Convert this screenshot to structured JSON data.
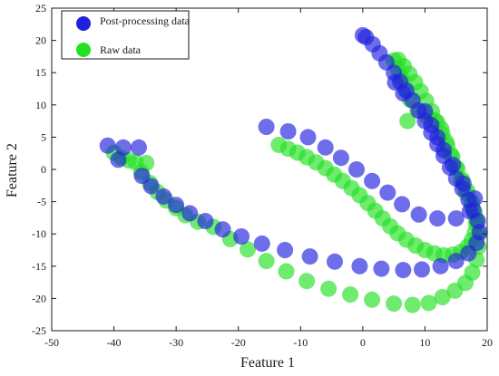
{
  "chart_data": {
    "type": "scatter",
    "xlabel": "Feature 1",
    "ylabel": "Feature 2",
    "xlim": [
      -50,
      20
    ],
    "ylim": [
      -25,
      25
    ],
    "xticks": [
      -50,
      -40,
      -30,
      -20,
      -10,
      0,
      10,
      20
    ],
    "yticks": [
      -25,
      -20,
      -15,
      -10,
      -5,
      0,
      5,
      10,
      15,
      20,
      25
    ],
    "grid": false,
    "legend_position": "top-left",
    "series": [
      {
        "name": "Raw data",
        "color": "#22e022",
        "points": [
          [
            -40.0,
            2.6
          ],
          [
            -38.8,
            1.8
          ],
          [
            -37.6,
            1.4
          ],
          [
            -36.5,
            1.1
          ],
          [
            -34.8,
            1.0
          ],
          [
            -35.6,
            -0.4
          ],
          [
            -34.2,
            -2.1
          ],
          [
            -33.0,
            -3.5
          ],
          [
            -31.6,
            -4.8
          ],
          [
            -30.0,
            -6.0
          ],
          [
            -28.5,
            -7.1
          ],
          [
            -26.5,
            -8.1
          ],
          [
            -24.0,
            -8.9
          ],
          [
            -21.3,
            -10.8
          ],
          [
            -18.5,
            -12.4
          ],
          [
            -15.5,
            -14.2
          ],
          [
            -12.3,
            -15.8
          ],
          [
            -9.0,
            -17.3
          ],
          [
            -5.5,
            -18.5
          ],
          [
            -2.0,
            -19.4
          ],
          [
            1.5,
            -20.2
          ],
          [
            5.0,
            -20.8
          ],
          [
            8.0,
            -21.0
          ],
          [
            10.6,
            -20.7
          ],
          [
            12.8,
            -19.8
          ],
          [
            14.8,
            -18.8
          ],
          [
            16.5,
            -17.6
          ],
          [
            17.6,
            -16.0
          ],
          [
            18.3,
            -14.0
          ],
          [
            18.6,
            -12.0
          ],
          [
            18.7,
            -10.0
          ],
          [
            18.3,
            -7.8
          ],
          [
            17.5,
            -5.7
          ],
          [
            16.6,
            -3.7
          ],
          [
            15.8,
            -1.8
          ],
          [
            15.0,
            0.3
          ],
          [
            14.2,
            2.3
          ],
          [
            13.4,
            4.3
          ],
          [
            12.6,
            6.3
          ],
          [
            11.6,
            7.6
          ],
          [
            10.3,
            8.2
          ],
          [
            8.8,
            9.2
          ],
          [
            7.6,
            10.8
          ],
          [
            6.8,
            12.5
          ],
          [
            6.2,
            14.2
          ],
          [
            5.6,
            15.6
          ],
          [
            5.0,
            16.9
          ],
          [
            7.2,
            7.5
          ],
          [
            -13.5,
            3.8
          ],
          [
            -12.0,
            3.2
          ],
          [
            -10.5,
            2.6
          ],
          [
            -9.0,
            1.9
          ],
          [
            -7.5,
            1.1
          ],
          [
            -6.0,
            0.2
          ],
          [
            -4.6,
            -0.8
          ],
          [
            -3.2,
            -1.8
          ],
          [
            -1.8,
            -2.9
          ],
          [
            -0.5,
            -4.0
          ],
          [
            0.8,
            -5.2
          ],
          [
            2.0,
            -6.4
          ],
          [
            3.2,
            -7.6
          ],
          [
            4.4,
            -8.8
          ],
          [
            5.6,
            -9.9
          ],
          [
            7.0,
            -10.9
          ],
          [
            8.5,
            -11.8
          ],
          [
            10.0,
            -12.5
          ],
          [
            11.5,
            -13.0
          ],
          [
            13.0,
            -13.3
          ],
          [
            14.5,
            -13.2
          ],
          [
            15.8,
            -12.8
          ],
          [
            16.8,
            -12.0
          ],
          [
            17.5,
            -11.0
          ],
          [
            18.0,
            -9.8
          ],
          [
            18.2,
            -8.4
          ],
          [
            18.0,
            -6.8
          ],
          [
            17.5,
            -5.0
          ],
          [
            16.8,
            -3.3
          ],
          [
            16.0,
            -1.6
          ],
          [
            15.2,
            0.1
          ],
          [
            14.4,
            1.9
          ],
          [
            13.6,
            3.7
          ],
          [
            12.8,
            5.5
          ],
          [
            12.0,
            7.3
          ],
          [
            11.1,
            9.0
          ],
          [
            10.2,
            10.6
          ],
          [
            9.3,
            12.1
          ],
          [
            8.4,
            13.5
          ],
          [
            7.5,
            14.8
          ],
          [
            6.6,
            16.0
          ],
          [
            5.7,
            17.0
          ]
        ]
      },
      {
        "name": "Post-processing data",
        "color": "#2020e0",
        "points": [
          [
            -41.0,
            3.7
          ],
          [
            -38.5,
            3.4
          ],
          [
            -36.0,
            3.4
          ],
          [
            -39.3,
            1.5
          ],
          [
            -35.5,
            -1.0
          ],
          [
            -34.0,
            -2.6
          ],
          [
            -32.0,
            -4.2
          ],
          [
            -30.0,
            -5.5
          ],
          [
            -27.8,
            -6.8
          ],
          [
            -25.3,
            -8.0
          ],
          [
            -22.5,
            -9.3
          ],
          [
            -19.5,
            -10.4
          ],
          [
            -16.2,
            -11.5
          ],
          [
            -12.5,
            -12.5
          ],
          [
            -8.5,
            -13.5
          ],
          [
            -4.5,
            -14.3
          ],
          [
            -0.5,
            -15.0
          ],
          [
            3.0,
            -15.4
          ],
          [
            6.5,
            -15.6
          ],
          [
            9.5,
            -15.5
          ],
          [
            12.5,
            -15.0
          ],
          [
            15.0,
            -14.2
          ],
          [
            17.0,
            -13.0
          ],
          [
            18.3,
            -11.4
          ],
          [
            18.8,
            -9.7
          ],
          [
            18.5,
            -8.0
          ],
          [
            17.8,
            -6.3
          ],
          [
            17.0,
            -4.7
          ],
          [
            16.0,
            -3.0
          ],
          [
            15.0,
            -1.4
          ],
          [
            14.0,
            0.3
          ],
          [
            13.0,
            2.1
          ],
          [
            12.0,
            3.9
          ],
          [
            11.0,
            5.7
          ],
          [
            10.0,
            7.5
          ],
          [
            9.0,
            9.1
          ],
          [
            8.0,
            10.7
          ],
          [
            7.0,
            12.2
          ],
          [
            6.0,
            13.6
          ],
          [
            5.0,
            15.0
          ],
          [
            3.8,
            16.6
          ],
          [
            2.7,
            18.0
          ],
          [
            1.6,
            19.4
          ],
          [
            0.5,
            20.5
          ],
          [
            0.0,
            20.8
          ],
          [
            -15.5,
            6.6
          ],
          [
            -12.0,
            5.9
          ],
          [
            -8.8,
            5.0
          ],
          [
            -6.0,
            3.4
          ],
          [
            -3.5,
            1.8
          ],
          [
            -1.0,
            0.0
          ],
          [
            1.5,
            -1.8
          ],
          [
            4.0,
            -3.6
          ],
          [
            6.3,
            -5.4
          ],
          [
            9.0,
            -7.0
          ],
          [
            12.0,
            -7.6
          ],
          [
            15.0,
            -7.6
          ],
          [
            17.2,
            -6.5
          ],
          [
            18.0,
            -4.5
          ],
          [
            16.2,
            -2.2
          ],
          [
            14.5,
            0.7
          ],
          [
            13.0,
            3.0
          ],
          [
            12.0,
            5.0
          ],
          [
            11.0,
            6.9
          ],
          [
            10.0,
            9.0
          ],
          [
            5.2,
            13.5
          ],
          [
            6.5,
            11.8
          ]
        ]
      }
    ]
  }
}
